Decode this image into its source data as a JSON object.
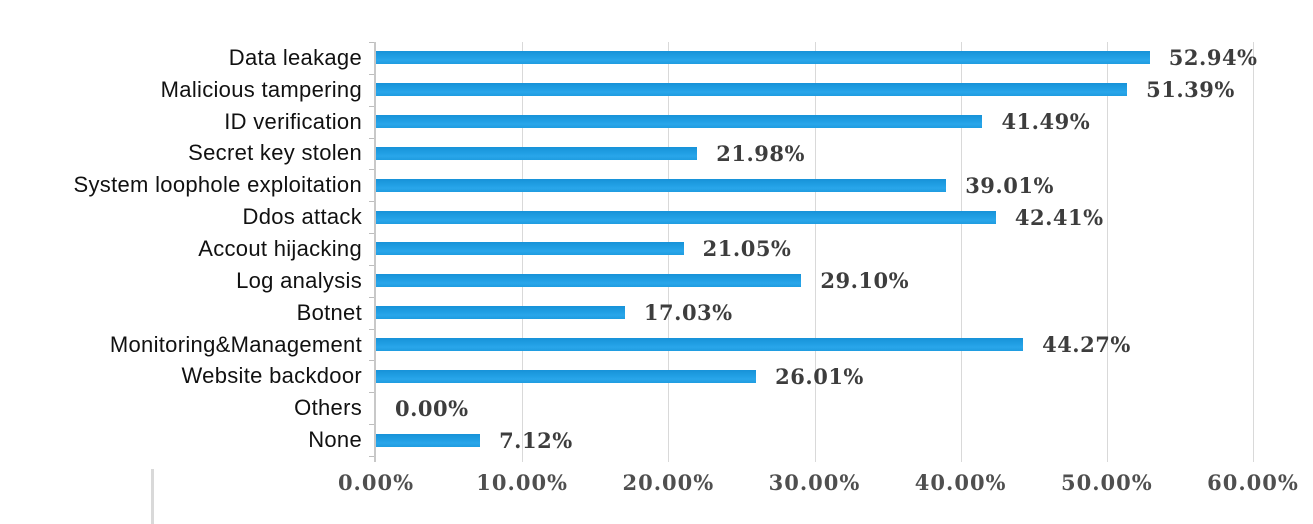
{
  "chart_data": {
    "type": "bar",
    "orientation": "horizontal",
    "title": "",
    "categories": [
      "Data leakage",
      "Malicious tampering",
      "ID verification",
      "Secret key stolen",
      "System loophole exploitation",
      "Ddos attack",
      "Accout hijacking",
      "Log analysis",
      "Botnet",
      "Monitoring&Management",
      "Website backdoor",
      "Others",
      "None"
    ],
    "values": [
      52.94,
      51.39,
      41.49,
      21.98,
      39.01,
      42.41,
      21.05,
      29.1,
      17.03,
      44.27,
      26.01,
      0.0,
      7.12
    ],
    "value_labels": [
      "52.94%",
      "51.39%",
      "41.49%",
      "21.98%",
      "39.01%",
      "42.41%",
      "21.05%",
      "29.10%",
      "17.03%",
      "44.27%",
      "26.01%",
      "0.00%",
      "7.12%"
    ],
    "x_tick_labels": [
      "0.00%",
      "10.00%",
      "20.00%",
      "30.00%",
      "40.00%",
      "50.00%",
      "60.00%"
    ],
    "xlim": [
      0,
      60
    ],
    "grid": true,
    "legend": "none",
    "colors": {
      "bar": "#1f9ce0",
      "gridline": "#d9d9d9",
      "axis_line": "#c8c8c8",
      "value_label": "#3d3d3d",
      "tick_label": "#4f4f4f",
      "category_label": "#111111"
    }
  }
}
